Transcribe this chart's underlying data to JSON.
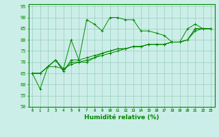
{
  "xlabel": "Humidité relative (%)",
  "bg_color": "#cceee8",
  "grid_color": "#99ccbb",
  "line_color": "#008800",
  "xlim": [
    -0.5,
    23.5
  ],
  "ylim": [
    50,
    96
  ],
  "yticks": [
    50,
    55,
    60,
    65,
    70,
    75,
    80,
    85,
    90,
    95
  ],
  "xticks": [
    0,
    1,
    2,
    3,
    4,
    5,
    6,
    7,
    8,
    9,
    10,
    11,
    12,
    13,
    14,
    15,
    16,
    17,
    18,
    19,
    20,
    21,
    22,
    23
  ],
  "series": [
    [
      65,
      58,
      68,
      71,
      67,
      80,
      71,
      89,
      87,
      84,
      90,
      90,
      89,
      89,
      84,
      84,
      83,
      82,
      79,
      79,
      85,
      87,
      85,
      85
    ],
    [
      65,
      65,
      68,
      71,
      66,
      70,
      70,
      70,
      72,
      74,
      75,
      76,
      76,
      77,
      77,
      78,
      78,
      78,
      79,
      79,
      80,
      85,
      85,
      85
    ],
    [
      65,
      65,
      68,
      68,
      67,
      69,
      70,
      71,
      72,
      73,
      74,
      75,
      76,
      77,
      77,
      78,
      78,
      78,
      79,
      79,
      80,
      84,
      85,
      85
    ],
    [
      65,
      65,
      68,
      71,
      66,
      71,
      71,
      72,
      73,
      74,
      75,
      76,
      76,
      77,
      77,
      78,
      78,
      78,
      79,
      79,
      80,
      85,
      85,
      85
    ]
  ]
}
